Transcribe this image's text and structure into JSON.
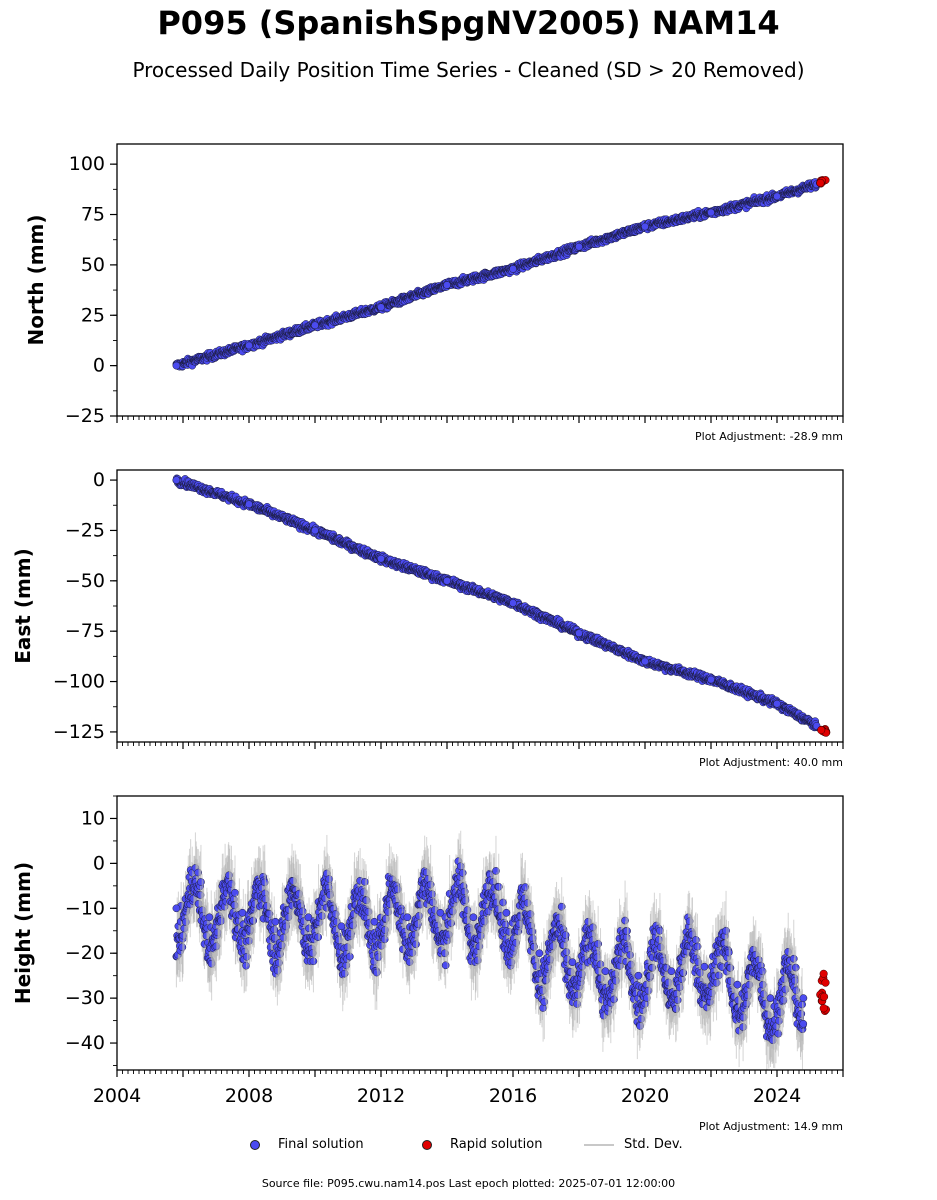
{
  "header": {
    "title": "P095 (SpanishSpgNV2005) NAM14",
    "subtitle": "Processed Daily Position Time Series - Cleaned (SD > 20 Removed)"
  },
  "legend": {
    "final": "Final solution",
    "rapid": "Rapid solution",
    "stddev": "Std. Dev."
  },
  "colors": {
    "final": "#4b4bf0",
    "rapid": "#e00000",
    "stddev": "#b0b0b0"
  },
  "footer": {
    "source": "Source file: P095.cwu.nam14.pos  Last epoch plotted: 2025-07-01 12:00:00"
  },
  "chart_data": [
    {
      "type": "scatter",
      "ylabel": "North (mm)",
      "xlim": [
        2004,
        2026
      ],
      "ylim": [
        -25,
        110
      ],
      "yticks": [
        -25,
        0,
        25,
        50,
        75,
        100
      ],
      "adjustment": "Plot Adjustment: -28.9 mm",
      "series": [
        {
          "name": "Final solution",
          "x": [
            2005.8,
            2008.0,
            2010.0,
            2012.0,
            2014.0,
            2016.0,
            2018.0,
            2020.0,
            2022.0,
            2024.0,
            2025.2
          ],
          "y": [
            0,
            10,
            20,
            29,
            40,
            48,
            59,
            69,
            76,
            84,
            90
          ]
        },
        {
          "name": "Rapid solution",
          "x": [
            2025.3,
            2025.5
          ],
          "y": [
            91,
            92
          ]
        }
      ]
    },
    {
      "type": "scatter",
      "ylabel": "East (mm)",
      "xlim": [
        2004,
        2026
      ],
      "ylim": [
        -130,
        5
      ],
      "yticks": [
        -125,
        -100,
        -75,
        -50,
        -25,
        0
      ],
      "adjustment": "Plot Adjustment: 40.0 mm",
      "series": [
        {
          "name": "Final solution",
          "x": [
            2005.8,
            2008.0,
            2010.0,
            2012.0,
            2014.0,
            2016.0,
            2018.0,
            2020.0,
            2022.0,
            2024.0,
            2025.2
          ],
          "y": [
            0,
            -12,
            -25,
            -39,
            -50,
            -61,
            -76,
            -90,
            -99,
            -111,
            -122
          ]
        },
        {
          "name": "Rapid solution",
          "x": [
            2025.3,
            2025.5
          ],
          "y": [
            -124,
            -125
          ]
        }
      ]
    },
    {
      "type": "scatter",
      "ylabel": "Height (mm)",
      "xlim": [
        2004,
        2026
      ],
      "ylim": [
        -46,
        15
      ],
      "yticks": [
        -40,
        -30,
        -20,
        -10,
        0,
        10
      ],
      "xticks": [
        2004,
        2008,
        2012,
        2016,
        2020,
        2024
      ],
      "adjustment": "Plot Adjustment: 14.9 mm",
      "series": [
        {
          "name": "Final solution",
          "x": [
            2005.8,
            2006.8,
            2007.8,
            2008.8,
            2009.8,
            2010.8,
            2011.8,
            2012.8,
            2013.8,
            2014.8,
            2015.8,
            2016.8,
            2017.8,
            2018.8,
            2019.8,
            2020.8,
            2021.8,
            2022.8,
            2023.8,
            2024.8
          ],
          "y": [
            -10,
            -12,
            -11,
            -13,
            -12,
            -14,
            -13,
            -12,
            -11,
            -12,
            -11,
            -20,
            -22,
            -24,
            -25,
            -24,
            -23,
            -27,
            -30,
            -30
          ]
        },
        {
          "name": "Rapid solution",
          "x": [
            2025.3,
            2025.4,
            2025.5
          ],
          "y": [
            -24,
            -29,
            -34
          ]
        }
      ]
    }
  ]
}
